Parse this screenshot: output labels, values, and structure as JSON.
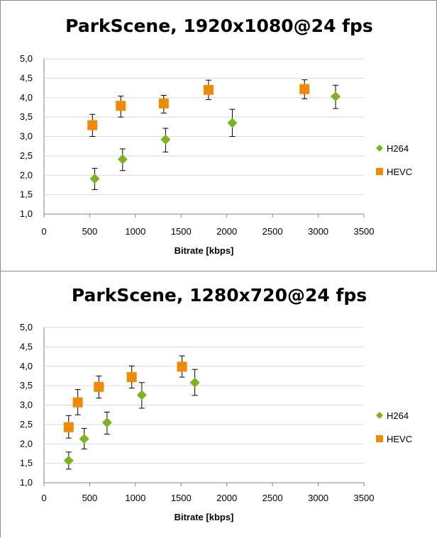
{
  "colors": {
    "h264": "#7ab51d",
    "hevc": "#f28a00",
    "grid": "#d9d9d9",
    "axis": "#868686"
  },
  "chart_data": [
    {
      "type": "scatter",
      "title": "ParkScene, 1920x1080@24 fps",
      "xlabel": "Bitrate [kbps]",
      "ylabel": "",
      "xlim": [
        0,
        3500
      ],
      "ylim": [
        1.0,
        5.0
      ],
      "xticks": [
        "0",
        "500",
        "1000",
        "1500",
        "2000",
        "2500",
        "3000",
        "3500"
      ],
      "yticks": [
        "1,0",
        "1,5",
        "2,0",
        "2,5",
        "3,0",
        "3,5",
        "4,0",
        "4,5",
        "5,0"
      ],
      "grid": true,
      "legend": "right",
      "series": [
        {
          "name": "H264",
          "marker": "diamond",
          "x": [
            555,
            860,
            1330,
            2060,
            3190
          ],
          "y": [
            1.91,
            2.41,
            2.92,
            3.35,
            4.03
          ],
          "err_low": [
            1.63,
            2.12,
            2.6,
            3.0,
            3.72
          ],
          "err_high": [
            2.18,
            2.68,
            3.21,
            3.7,
            4.32
          ]
        },
        {
          "name": "HEVC",
          "marker": "square",
          "x": [
            530,
            840,
            1310,
            1800,
            2850
          ],
          "y": [
            3.29,
            3.79,
            3.85,
            4.2,
            4.22
          ],
          "err_low": [
            3.0,
            3.5,
            3.6,
            3.95,
            3.97
          ],
          "err_high": [
            3.57,
            4.04,
            4.06,
            4.45,
            4.46
          ]
        }
      ]
    },
    {
      "type": "scatter",
      "title": "ParkScene, 1280x720@24 fps",
      "xlabel": "Bitrate [kbps]",
      "ylabel": "",
      "xlim": [
        0,
        3500
      ],
      "ylim": [
        1.0,
        5.0
      ],
      "xticks": [
        "0",
        "500",
        "1000",
        "1500",
        "2000",
        "2500",
        "3000",
        "3500"
      ],
      "yticks": [
        "1,0",
        "1,5",
        "2,0",
        "2,5",
        "3,0",
        "3,5",
        "4,0",
        "4,5",
        "5,0"
      ],
      "grid": true,
      "legend": "right",
      "series": [
        {
          "name": "H264",
          "marker": "diamond",
          "x": [
            270,
            440,
            690,
            1070,
            1650
          ],
          "y": [
            1.57,
            2.13,
            2.55,
            3.26,
            3.58
          ],
          "err_low": [
            1.35,
            1.87,
            2.25,
            2.92,
            3.25
          ],
          "err_high": [
            1.79,
            2.4,
            2.82,
            3.58,
            3.92
          ]
        },
        {
          "name": "HEVC",
          "marker": "square",
          "x": [
            270,
            370,
            600,
            960,
            1510
          ],
          "y": [
            2.43,
            3.07,
            3.47,
            3.72,
            3.99
          ],
          "err_low": [
            2.15,
            2.75,
            3.18,
            3.44,
            3.72
          ],
          "err_high": [
            2.73,
            3.4,
            3.75,
            4.01,
            4.27
          ]
        }
      ]
    }
  ]
}
